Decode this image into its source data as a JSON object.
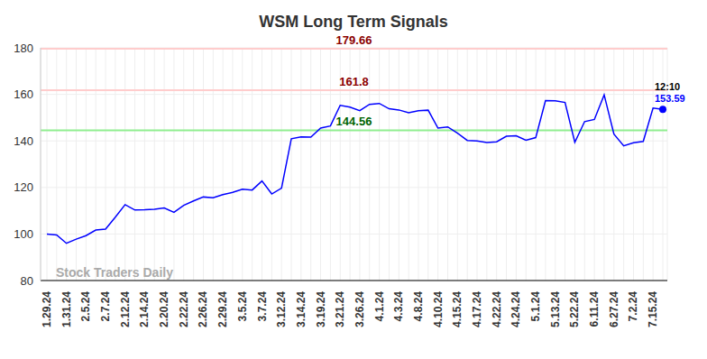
{
  "chart_data": {
    "type": "line",
    "title": "WSM Long Term Signals",
    "categories": [
      "1.29.24",
      null,
      "1.31.24",
      null,
      "2.5.24",
      null,
      "2.7.24",
      null,
      "2.12.24",
      null,
      "2.14.24",
      null,
      "2.20.24",
      null,
      "2.22.24",
      null,
      "2.26.24",
      null,
      "2.29.24",
      null,
      "3.5.24",
      null,
      "3.7.24",
      null,
      "3.12.24",
      null,
      "3.14.24",
      null,
      "3.19.24",
      null,
      "3.21.24",
      null,
      "3.26.24",
      null,
      "4.1.24",
      null,
      "4.3.24",
      null,
      "4.8.24",
      null,
      "4.10.24",
      null,
      "4.15.24",
      null,
      "4.17.24",
      null,
      "4.22.24",
      null,
      "4.24.24",
      null,
      "5.1.24",
      null,
      "5.13.24",
      null,
      "5.22.24",
      null,
      "6.11.24",
      null,
      "6.27.24",
      null,
      "7.2.24",
      null,
      "7.15.24",
      null
    ],
    "values": [
      100,
      99.6,
      96,
      97.8,
      99.3,
      101.7,
      102.1,
      107.2,
      112.6,
      110.3,
      110.4,
      110.6,
      111.2,
      109.3,
      112.3,
      114.2,
      115.9,
      115.6,
      116.9,
      117.9,
      119.2,
      118.9,
      122.8,
      117.2,
      119.7,
      140.9,
      141.7,
      141.6,
      145.5,
      146.4,
      155.3,
      154.5,
      153.0,
      155.7,
      156.1,
      153.8,
      153.3,
      152.1,
      153.0,
      153.2,
      145.5,
      146.0,
      143.3,
      140.2,
      140.0,
      139.3,
      139.6,
      142.0,
      142.2,
      140.3,
      141.4,
      157.3,
      157.2,
      156.5,
      139.4,
      148.3,
      149.2,
      159.8,
      142.9,
      137.9,
      139.2,
      139.8,
      154.1,
      153.59
    ],
    "color": "#0000ff",
    "ylim": [
      80,
      180
    ],
    "yticks": [
      80,
      100,
      120,
      140,
      160,
      180
    ],
    "grid": true,
    "levels": [
      {
        "value": 179.66,
        "color": "#ffcccc",
        "label_color": "#8b0000"
      },
      {
        "value": 161.8,
        "color": "#ffcccc",
        "label_color": "#8b0000"
      },
      {
        "value": 144.56,
        "color": "#90ee90",
        "label_color": "#006400"
      }
    ],
    "annotations": {
      "last_time": "12:10",
      "watermark": "Stock Traders Daily"
    }
  }
}
